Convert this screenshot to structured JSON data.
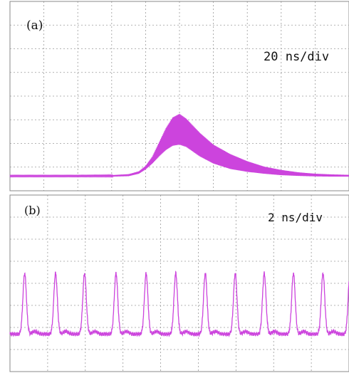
{
  "figure": {
    "trace_color": "#cc44dd",
    "grid_color": "#9a9a9a",
    "frame_color": "#888888"
  },
  "chart_data": [
    {
      "type": "line",
      "panel_label": "(a)",
      "annotation": "20 ns/div",
      "x_unit": "ns",
      "x_per_div": 20,
      "x_divisions": 10,
      "y_divisions": 8,
      "xlim": [
        0,
        200
      ],
      "ylim": [
        0,
        8
      ],
      "grid": true,
      "envelope": {
        "x": [
          0,
          20,
          40,
          60,
          70,
          76,
          80,
          84,
          88,
          92,
          96,
          100,
          104,
          108,
          112,
          120,
          130,
          140,
          150,
          160,
          170,
          180,
          190,
          200
        ],
        "upper": [
          0.65,
          0.65,
          0.65,
          0.66,
          0.7,
          0.82,
          1.05,
          1.45,
          2.05,
          2.65,
          3.1,
          3.25,
          3.05,
          2.75,
          2.45,
          1.95,
          1.55,
          1.25,
          1.02,
          0.88,
          0.78,
          0.72,
          0.69,
          0.67
        ],
        "lower": [
          0.6,
          0.6,
          0.6,
          0.6,
          0.62,
          0.72,
          0.9,
          1.15,
          1.45,
          1.72,
          1.9,
          1.95,
          1.85,
          1.65,
          1.45,
          1.15,
          0.92,
          0.8,
          0.72,
          0.66,
          0.63,
          0.61,
          0.6,
          0.6
        ]
      }
    },
    {
      "type": "line",
      "panel_label": "(b)",
      "annotation": "2 ns/div",
      "x_unit": "ns",
      "x_per_div": 2,
      "x_divisions": 9,
      "y_divisions": 8,
      "xlim": [
        0,
        18
      ],
      "ylim": [
        0,
        8
      ],
      "grid": true,
      "baseline": 1.7,
      "pulse_peak": 4.45,
      "pulse_width_ns": 0.22,
      "pulse_centers": [
        0.78,
        2.42,
        3.96,
        5.63,
        7.23,
        8.8,
        10.37,
        11.96,
        13.5,
        15.05,
        16.62,
        18.05
      ]
    }
  ]
}
